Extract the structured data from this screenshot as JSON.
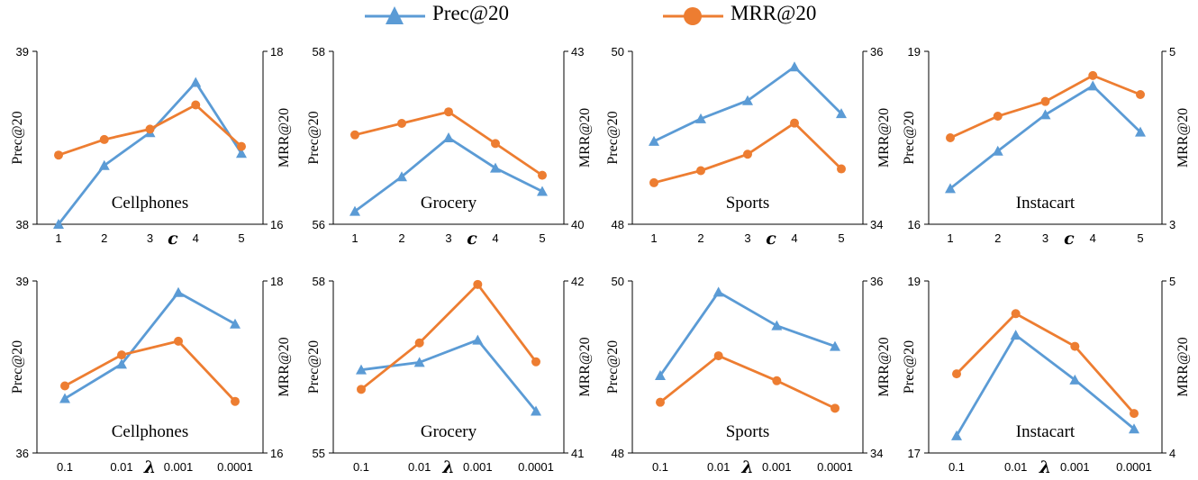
{
  "legend": {
    "prec_label": "Prec@20",
    "mrr_label": "MRR@20"
  },
  "colors": {
    "prec": "#5B9BD5",
    "mrr": "#ED7D31"
  },
  "chart_data": [
    {
      "type": "line",
      "title": "Cellphones",
      "xsym": "c",
      "categories": [
        "1",
        "2",
        "3",
        "4",
        "5"
      ],
      "left_ylabel": "Prec@20",
      "right_ylabel": "MRR@20",
      "ylim_left": [
        38,
        39
      ],
      "ylim_right": [
        16,
        18
      ],
      "left_ticks": [
        "38",
        "39"
      ],
      "right_ticks": [
        "16",
        "18"
      ],
      "series": [
        {
          "name": "Prec@20",
          "axis": "left",
          "values": [
            38.0,
            38.34,
            38.53,
            38.82,
            38.41
          ]
        },
        {
          "name": "MRR@20",
          "axis": "right",
          "values": [
            16.8,
            16.98,
            17.1,
            17.38,
            16.9
          ]
        }
      ]
    },
    {
      "type": "line",
      "title": "Grocery",
      "xsym": "c",
      "categories": [
        "1",
        "2",
        "3",
        "4",
        "5"
      ],
      "left_ylabel": "Prec@20",
      "right_ylabel": "MRR@20",
      "ylim_left": [
        56,
        58
      ],
      "ylim_right": [
        40,
        43
      ],
      "left_ticks": [
        "56",
        "58"
      ],
      "right_ticks": [
        "40",
        "43"
      ],
      "series": [
        {
          "name": "Prec@20",
          "axis": "left",
          "values": [
            56.15,
            56.55,
            57.0,
            56.65,
            56.38
          ]
        },
        {
          "name": "MRR@20",
          "axis": "right",
          "values": [
            41.55,
            41.75,
            41.95,
            41.4,
            40.85
          ]
        }
      ]
    },
    {
      "type": "line",
      "title": "Sports",
      "xsym": "c",
      "categories": [
        "1",
        "2",
        "3",
        "4",
        "5"
      ],
      "left_ylabel": "Prec@20",
      "right_ylabel": "MRR@20",
      "ylim_left": [
        48,
        50
      ],
      "ylim_right": [
        34,
        36
      ],
      "left_ticks": [
        "48",
        "50"
      ],
      "right_ticks": [
        "34",
        "36"
      ],
      "series": [
        {
          "name": "Prec@20",
          "axis": "left",
          "values": [
            48.96,
            49.22,
            49.43,
            49.82,
            49.28
          ]
        },
        {
          "name": "MRR@20",
          "axis": "right",
          "values": [
            34.48,
            34.62,
            34.81,
            35.17,
            34.64
          ]
        }
      ]
    },
    {
      "type": "line",
      "title": "Instacart",
      "xsym": "c",
      "categories": [
        "1",
        "2",
        "3",
        "4",
        "5"
      ],
      "left_ylabel": "Prec@20",
      "right_ylabel": "MRR@20",
      "ylim_left": [
        16,
        19
      ],
      "ylim_right": [
        3,
        5
      ],
      "left_ticks": [
        "16",
        "19"
      ],
      "right_ticks": [
        "3",
        "5"
      ],
      "series": [
        {
          "name": "Prec@20",
          "axis": "left",
          "values": [
            16.62,
            17.27,
            17.9,
            18.4,
            17.6
          ]
        },
        {
          "name": "MRR@20",
          "axis": "right",
          "values": [
            4.0,
            4.25,
            4.42,
            4.72,
            4.5
          ]
        }
      ]
    },
    {
      "type": "line",
      "title": "Cellphones",
      "xsym": "λ",
      "categories": [
        "0.1",
        "0.01",
        "0.001",
        "0.0001"
      ],
      "left_ylabel": "Prec@20",
      "right_ylabel": "MRR@20",
      "ylim_left": [
        36,
        39
      ],
      "ylim_right": [
        16,
        18
      ],
      "left_ticks": [
        "36",
        "39"
      ],
      "right_ticks": [
        "16",
        "18"
      ],
      "series": [
        {
          "name": "Prec@20",
          "axis": "left",
          "values": [
            36.95,
            37.55,
            38.8,
            38.25
          ]
        },
        {
          "name": "MRR@20",
          "axis": "right",
          "values": [
            16.78,
            17.14,
            17.3,
            16.6
          ]
        }
      ]
    },
    {
      "type": "line",
      "title": "Grocery",
      "xsym": "λ",
      "categories": [
        "0.1",
        "0.01",
        "0.001",
        "0.0001"
      ],
      "left_ylabel": "Prec@20",
      "right_ylabel": "MRR@20",
      "ylim_left": [
        55,
        58
      ],
      "ylim_right": [
        41,
        42
      ],
      "left_ticks": [
        "55",
        "58"
      ],
      "right_ticks": [
        "41",
        "42"
      ],
      "series": [
        {
          "name": "Prec@20",
          "axis": "left",
          "values": [
            56.45,
            56.58,
            56.97,
            55.73
          ]
        },
        {
          "name": "MRR@20",
          "axis": "right",
          "values": [
            41.37,
            41.64,
            41.98,
            41.53
          ]
        }
      ]
    },
    {
      "type": "line",
      "title": "Sports",
      "xsym": "λ",
      "categories": [
        "0.1",
        "0.01",
        "0.001",
        "0.0001"
      ],
      "left_ylabel": "Prec@20",
      "right_ylabel": "MRR@20",
      "ylim_left": [
        48,
        50
      ],
      "ylim_right": [
        34,
        36
      ],
      "left_ticks": [
        "48",
        "50"
      ],
      "right_ticks": [
        "34",
        "36"
      ],
      "series": [
        {
          "name": "Prec@20",
          "axis": "left",
          "values": [
            48.9,
            49.87,
            49.48,
            49.24
          ]
        },
        {
          "name": "MRR@20",
          "axis": "right",
          "values": [
            34.59,
            35.13,
            34.84,
            34.52
          ]
        }
      ]
    },
    {
      "type": "line",
      "title": "Instacart",
      "xsym": "λ",
      "categories": [
        "0.1",
        "0.01",
        "0.001",
        "0.0001"
      ],
      "left_ylabel": "Prec@20",
      "right_ylabel": "MRR@20",
      "ylim_left": [
        17,
        19
      ],
      "ylim_right": [
        4,
        5
      ],
      "left_ticks": [
        "17",
        "19"
      ],
      "right_ticks": [
        "4",
        "5"
      ],
      "series": [
        {
          "name": "Prec@20",
          "axis": "left",
          "values": [
            17.2,
            18.37,
            17.85,
            17.28
          ]
        },
        {
          "name": "MRR@20",
          "axis": "right",
          "values": [
            4.46,
            4.81,
            4.62,
            4.23
          ]
        }
      ]
    }
  ]
}
